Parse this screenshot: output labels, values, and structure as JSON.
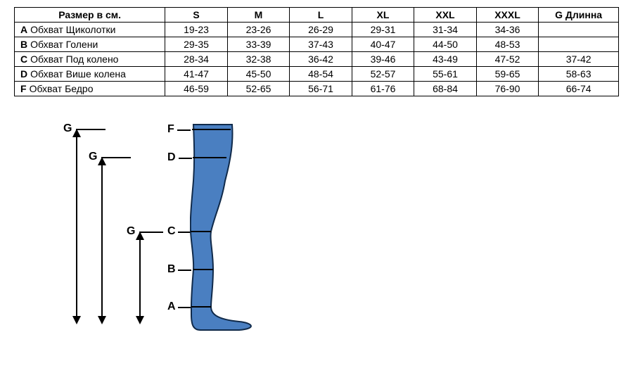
{
  "table": {
    "header_label": "Размер в см.",
    "columns": [
      "S",
      "M",
      "L",
      "XL",
      "XXL",
      "XXXL",
      "G Длинна"
    ],
    "rows": [
      {
        "letter": "A",
        "name": "Обхват Щиколотки",
        "cells": [
          "19-23",
          "23-26",
          "26-29",
          "29-31",
          "31-34",
          "34-36",
          ""
        ]
      },
      {
        "letter": "B",
        "name": "Обхват Голени",
        "cells": [
          "29-35",
          "33-39",
          "37-43",
          "40-47",
          "44-50",
          "48-53",
          ""
        ]
      },
      {
        "letter": "C",
        "name": "Обхват Под колено",
        "cells": [
          "28-34",
          "32-38",
          "36-42",
          "39-46",
          "43-49",
          "47-52",
          "37-42"
        ]
      },
      {
        "letter": "D",
        "name": "Обхват Више колена",
        "cells": [
          "41-47",
          "45-50",
          "48-54",
          "52-57",
          "55-61",
          "59-65",
          "58-63"
        ]
      },
      {
        "letter": "F",
        "name": "Обхват Бедро",
        "cells": [
          "46-59",
          "52-65",
          "56-71",
          "61-76",
          "68-84",
          "76-90",
          "66-74"
        ]
      }
    ]
  },
  "diagram": {
    "leg_color": "#4a7fc1",
    "leg_outline": "#102a4a",
    "labels": {
      "G1": "G",
      "G2": "G",
      "G3": "G",
      "F": "F",
      "D": "D",
      "C": "C",
      "B": "B",
      "A": "A"
    }
  }
}
